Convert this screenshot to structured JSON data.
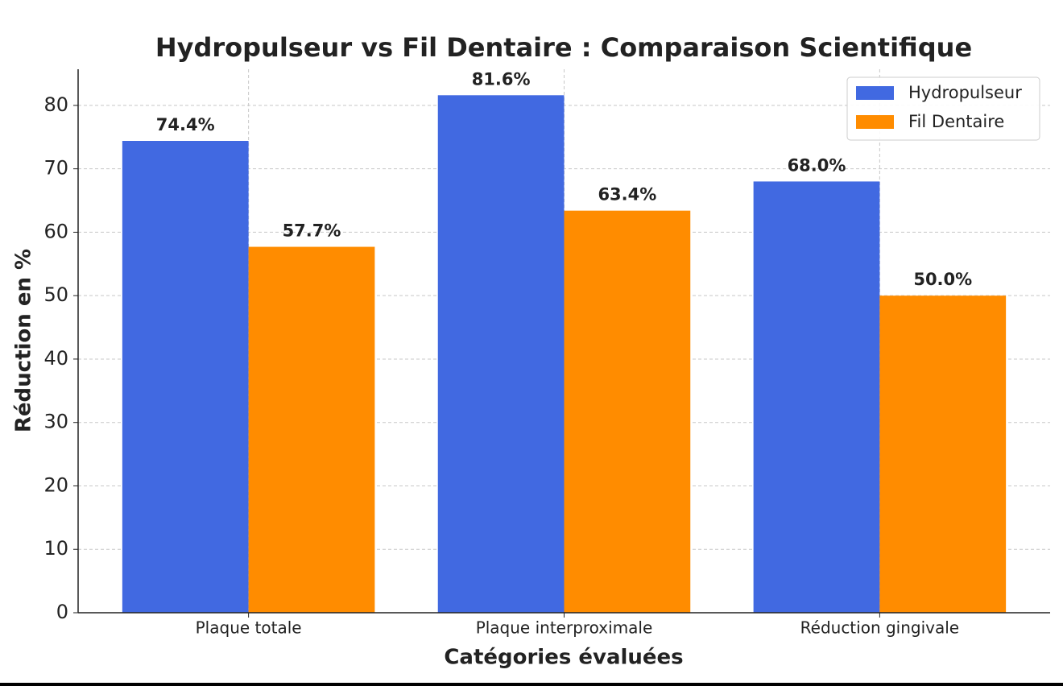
{
  "chart_data": {
    "type": "bar",
    "title": "Hydropulseur vs Fil Dentaire : Comparaison Scientifique",
    "x_label": "Catégories évaluées",
    "y_label": "Réduction en %",
    "categories": [
      "Plaque totale",
      "Plaque interproximale",
      "Réduction gingivale"
    ],
    "series": [
      {
        "name": "Hydropulseur",
        "color": "#4169e1",
        "values": [
          74.4,
          81.6,
          68.0
        ],
        "value_labels": [
          "74.4%",
          "81.6%",
          "68.0%"
        ]
      },
      {
        "name": "Fil Dentaire",
        "color": "#ff8c00",
        "values": [
          57.7,
          63.4,
          50.0
        ],
        "value_labels": [
          "57.7%",
          "63.4%",
          "50.0%"
        ]
      }
    ],
    "ylim": [
      0,
      85.7
    ],
    "yticks": [
      0,
      10,
      20,
      30,
      40,
      50,
      60,
      70,
      80
    ],
    "grid": true,
    "legend": "upper right"
  }
}
